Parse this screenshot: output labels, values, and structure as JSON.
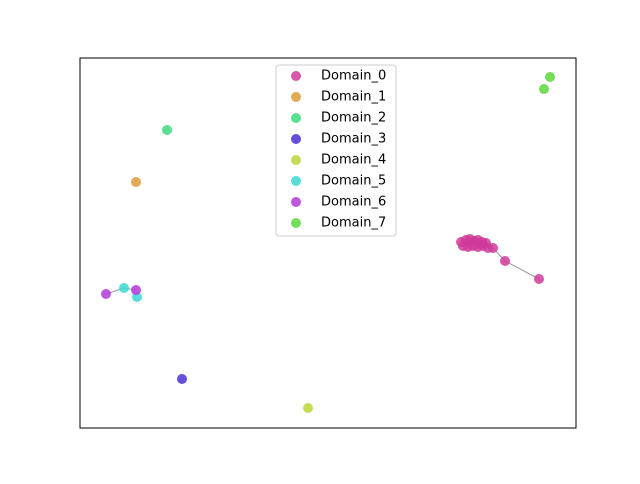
{
  "chart_data": {
    "type": "scatter",
    "xlim": [
      0,
      496
    ],
    "ylim": [
      0,
      370
    ],
    "legend": "upper center",
    "series": [
      {
        "name": "Domain_0",
        "color": "#d0399a",
        "x": [
          381,
          386,
          390,
          394,
          398,
          402,
          406,
          383,
          388,
          393,
          398,
          403,
          408,
          413,
          390,
          400,
          425,
          459
        ],
        "y": [
          186,
          188,
          189,
          187,
          188,
          186,
          185,
          182,
          181,
          182,
          181,
          182,
          180,
          180,
          185,
          184,
          167,
          149
        ]
      },
      {
        "name": "Domain_1",
        "color": "#dd9a3a",
        "x": [
          56
        ],
        "y": [
          246
        ]
      },
      {
        "name": "Domain_2",
        "color": "#3ddc7a",
        "x": [
          87
        ],
        "y": [
          298
        ]
      },
      {
        "name": "Domain_3",
        "color": "#4a30d8",
        "x": [
          102
        ],
        "y": [
          49
        ]
      },
      {
        "name": "Domain_4",
        "color": "#bcd63a",
        "x": [
          228
        ],
        "y": [
          20
        ]
      },
      {
        "name": "Domain_5",
        "color": "#3ad8d4",
        "x": [
          44,
          57
        ],
        "y": [
          140,
          131
        ]
      },
      {
        "name": "Domain_6",
        "color": "#b03ad8",
        "x": [
          26,
          56
        ],
        "y": [
          134,
          138
        ]
      },
      {
        "name": "Domain_7",
        "color": "#5ad83a",
        "x": [
          470,
          464
        ],
        "y": [
          351,
          339
        ]
      }
    ],
    "edges": [
      [
        [
          0,
          13
        ],
        [
          0,
          16
        ]
      ],
      [
        [
          0,
          16
        ],
        [
          0,
          17
        ]
      ],
      [
        [
          6,
          0
        ],
        [
          5,
          0
        ]
      ],
      [
        [
          5,
          0
        ],
        [
          6,
          1
        ]
      ]
    ]
  }
}
